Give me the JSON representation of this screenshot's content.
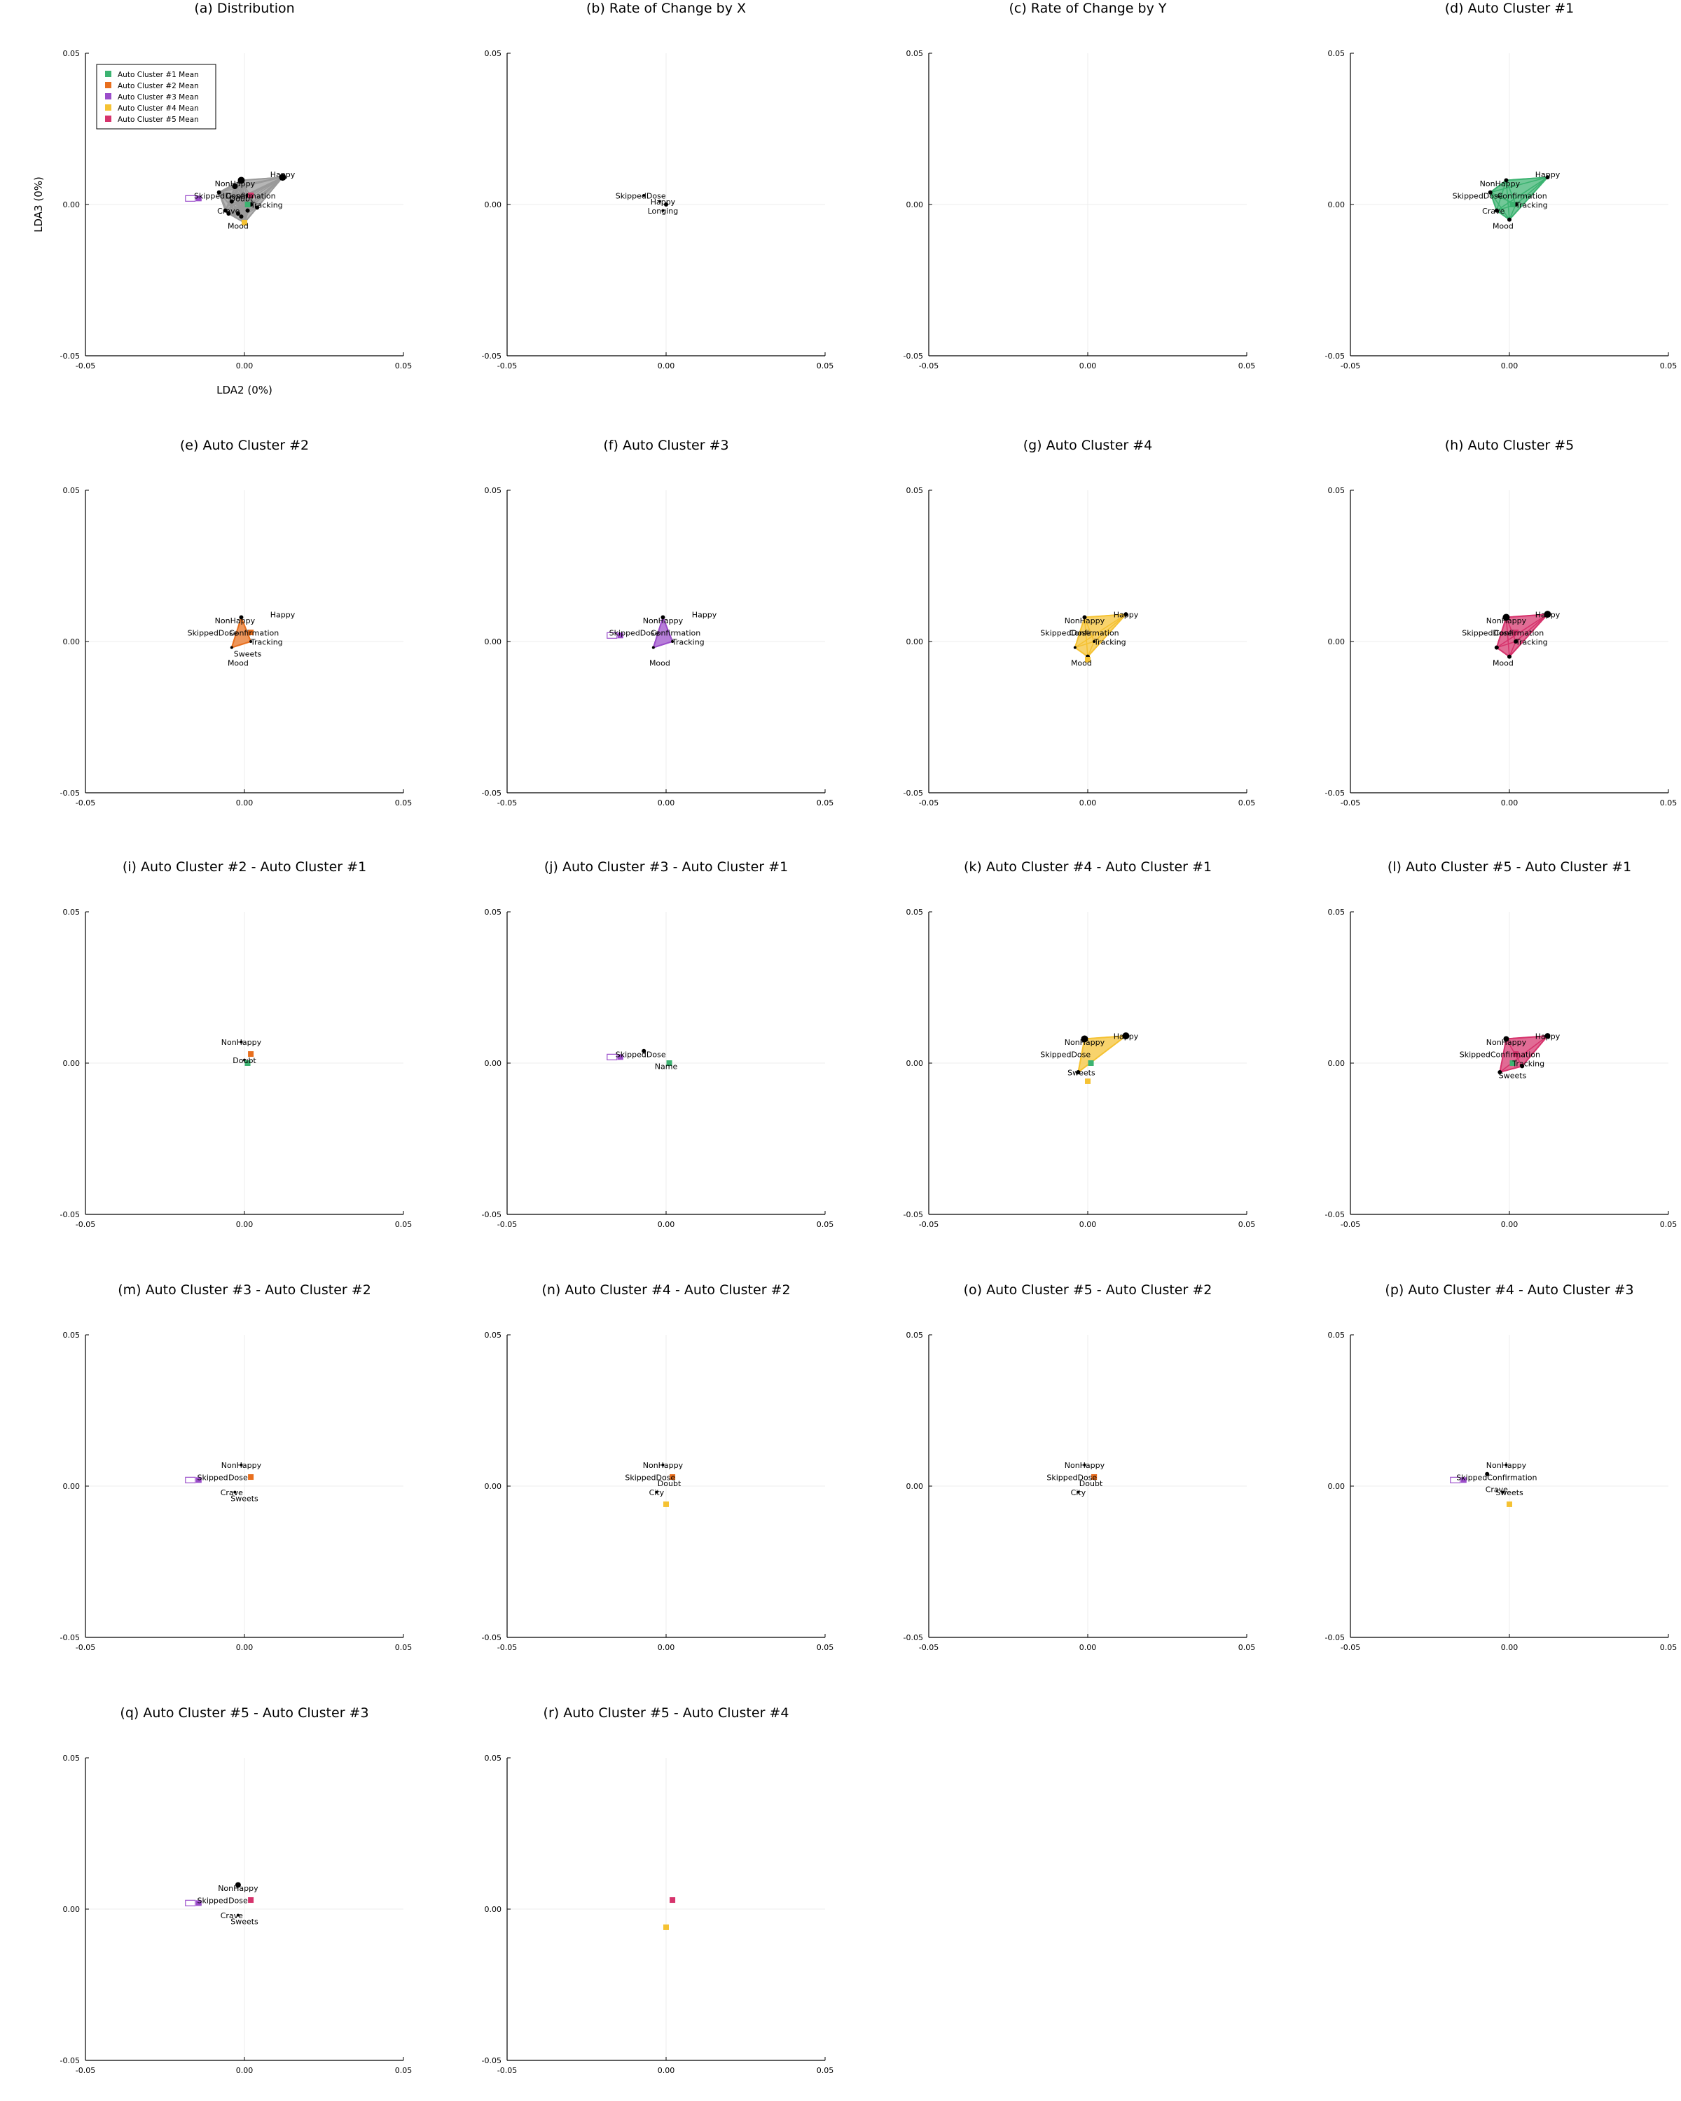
{
  "colors": {
    "cluster1": "#3cb371",
    "cluster2": "#e86f1e",
    "cluster3": "#9b4dca",
    "cluster4": "#f5c233",
    "cluster5": "#d6336c",
    "point": "#000000",
    "hull_all": "#9a9a9a",
    "grid": "#ececec",
    "axis": "#000000"
  },
  "legend": [
    {
      "label": "Auto Cluster #1 Mean",
      "color_key": "cluster1"
    },
    {
      "label": "Auto Cluster #2 Mean",
      "color_key": "cluster2"
    },
    {
      "label": "Auto Cluster #3 Mean",
      "color_key": "cluster3"
    },
    {
      "label": "Auto Cluster #4 Mean",
      "color_key": "cluster4"
    },
    {
      "label": "Auto Cluster #5 Mean",
      "color_key": "cluster5"
    }
  ],
  "chart_data": {
    "type": "scatter",
    "layout": "grid 5x4 of small-multiple scatter panels",
    "xlim": [
      -0.05,
      0.05
    ],
    "ylim": [
      -0.05,
      0.05
    ],
    "xticks": [
      "-0.05",
      "0.00",
      "0.05"
    ],
    "yticks": [
      "-0.05",
      "0.00",
      "0.05"
    ],
    "xlabel": "LDA2 (0%)",
    "ylabel": "LDA3 (0%)",
    "grid": true,
    "legend_position": "top-left",
    "means": {
      "cluster1": [
        0.001,
        0.0
      ],
      "cluster2": [
        0.002,
        0.003
      ],
      "cluster3": [
        -0.017,
        0.002
      ],
      "cluster4": [
        0.0,
        -0.006
      ],
      "cluster5": [
        0.002,
        0.003
      ]
    },
    "panels": [
      {
        "title": "(a) Distribution",
        "hull": "hull_all",
        "legend": true,
        "axis_labels": true,
        "means": [
          "cluster1",
          "cluster2",
          "cluster3",
          "cluster4",
          "cluster5"
        ],
        "open_means": [
          "cluster3"
        ],
        "points": [
          [
            -0.001,
            0.008,
            5
          ],
          [
            0.012,
            0.009,
            5
          ],
          [
            -0.003,
            0.006,
            4
          ],
          [
            -0.008,
            0.004,
            3
          ],
          [
            0.001,
            0.003,
            3
          ],
          [
            -0.004,
            0.001,
            3
          ],
          [
            0.002,
            0.0,
            3
          ],
          [
            0.004,
            -0.001,
            3
          ],
          [
            -0.006,
            -0.002,
            3
          ],
          [
            -0.002,
            -0.003,
            3
          ],
          [
            -0.005,
            -0.003,
            3
          ],
          [
            0.001,
            -0.002,
            3
          ],
          [
            -0.001,
            -0.004,
            3
          ],
          [
            0.0,
            -0.006,
            3
          ]
        ],
        "labels": [
          {
            "text": "Happy",
            "x": 0.012,
            "y": 0.009
          },
          {
            "text": "NonHappy",
            "x": -0.003,
            "y": 0.006
          },
          {
            "text": "Skipped",
            "x": -0.011,
            "y": 0.002
          },
          {
            "text": "Dose",
            "x": -0.003,
            "y": 0.002
          },
          {
            "text": "Confirmation",
            "x": 0.002,
            "y": 0.002
          },
          {
            "text": "Doubt",
            "x": -0.001,
            "y": 0.001
          },
          {
            "text": "Tracking",
            "x": 0.007,
            "y": -0.001
          },
          {
            "text": "Crave",
            "x": -0.005,
            "y": -0.003
          },
          {
            "text": "Mood",
            "x": -0.002,
            "y": -0.008
          }
        ]
      },
      {
        "title": "(b) Rate of Change by X",
        "hull": null,
        "points": [
          [
            -0.007,
            0.003,
            2
          ],
          [
            0.0,
            0.0,
            3
          ],
          [
            -0.002,
            0.001,
            2
          ],
          [
            -0.001,
            -0.002,
            2
          ]
        ],
        "labels": [
          {
            "text": "SkippedDose",
            "x": -0.008,
            "y": 0.002
          },
          {
            "text": "Happy",
            "x": -0.001,
            "y": 0.0
          },
          {
            "text": "Longing",
            "x": -0.001,
            "y": -0.003
          }
        ]
      },
      {
        "title": "(c) Rate of Change by Y",
        "hull": null,
        "points": [],
        "labels": []
      },
      {
        "title": "(d) Auto Cluster #1",
        "hull": "cluster1",
        "means": [
          "cluster1"
        ],
        "points": [
          [
            -0.001,
            0.008,
            3
          ],
          [
            0.012,
            0.009,
            3
          ],
          [
            -0.006,
            0.004,
            3
          ],
          [
            0.002,
            0.0,
            3
          ],
          [
            -0.004,
            -0.002,
            3
          ],
          [
            0.0,
            -0.005,
            3
          ]
        ],
        "labels": [
          {
            "text": "Happy",
            "x": 0.012,
            "y": 0.009
          },
          {
            "text": "NonHappy",
            "x": -0.003,
            "y": 0.006
          },
          {
            "text": "SkippedDose",
            "x": -0.01,
            "y": 0.002
          },
          {
            "text": "Confirmation",
            "x": 0.004,
            "y": 0.002
          },
          {
            "text": "Tracking",
            "x": 0.007,
            "y": -0.001
          },
          {
            "text": "Crave",
            "x": -0.005,
            "y": -0.003
          },
          {
            "text": "Mood",
            "x": -0.002,
            "y": -0.008
          }
        ]
      },
      {
        "title": "(e) Auto Cluster #2",
        "hull": "cluster2",
        "means": [
          "cluster2"
        ],
        "points": [
          [
            -0.001,
            0.008,
            3
          ],
          [
            0.002,
            0.0,
            2
          ],
          [
            -0.004,
            -0.002,
            2
          ]
        ],
        "labels": [
          {
            "text": "Happy",
            "x": 0.012,
            "y": 0.008
          },
          {
            "text": "NonHappy",
            "x": -0.003,
            "y": 0.006
          },
          {
            "text": "SkippedDose",
            "x": -0.01,
            "y": 0.002
          },
          {
            "text": "Confirmation",
            "x": 0.003,
            "y": 0.002
          },
          {
            "text": "Tracking",
            "x": 0.007,
            "y": -0.001
          },
          {
            "text": "Sweets",
            "x": 0.001,
            "y": -0.005
          },
          {
            "text": "Mood",
            "x": -0.002,
            "y": -0.008
          }
        ]
      },
      {
        "title": "(f) Auto Cluster #3",
        "hull": "cluster3",
        "means": [
          "cluster3"
        ],
        "open_means": [
          "cluster3"
        ],
        "points": [
          [
            -0.001,
            0.008,
            3
          ],
          [
            0.002,
            0.0,
            2
          ],
          [
            -0.004,
            -0.002,
            2
          ]
        ],
        "labels": [
          {
            "text": "Happy",
            "x": 0.012,
            "y": 0.008
          },
          {
            "text": "NonHappy",
            "x": -0.001,
            "y": 0.006
          },
          {
            "text": "SkippedDose",
            "x": -0.01,
            "y": 0.002
          },
          {
            "text": "Confirmation",
            "x": 0.003,
            "y": 0.002
          },
          {
            "text": "Tracking",
            "x": 0.007,
            "y": -0.001
          },
          {
            "text": "Mood",
            "x": -0.002,
            "y": -0.008
          }
        ]
      },
      {
        "title": "(g) Auto Cluster #4",
        "hull": "cluster4",
        "means": [
          "cluster4"
        ],
        "points": [
          [
            -0.001,
            0.008,
            3
          ],
          [
            0.012,
            0.009,
            3
          ],
          [
            0.002,
            0.0,
            2
          ],
          [
            -0.004,
            -0.002,
            2
          ],
          [
            0.0,
            -0.005,
            3
          ]
        ],
        "labels": [
          {
            "text": "Happy",
            "x": 0.012,
            "y": 0.008
          },
          {
            "text": "NonHappy",
            "x": -0.001,
            "y": 0.006
          },
          {
            "text": "SkippedDose",
            "x": -0.007,
            "y": 0.002
          },
          {
            "text": "Confirmation",
            "x": 0.002,
            "y": 0.002
          },
          {
            "text": "Tracking",
            "x": 0.007,
            "y": -0.001
          },
          {
            "text": "Mood",
            "x": -0.002,
            "y": -0.008
          }
        ]
      },
      {
        "title": "(h) Auto Cluster #5",
        "hull": "cluster5",
        "means": [
          "cluster5"
        ],
        "points": [
          [
            -0.001,
            0.008,
            5
          ],
          [
            0.012,
            0.009,
            5
          ],
          [
            0.002,
            0.0,
            3
          ],
          [
            -0.004,
            -0.002,
            3
          ],
          [
            0.0,
            -0.005,
            3
          ]
        ],
        "labels": [
          {
            "text": "Happy",
            "x": 0.012,
            "y": 0.008
          },
          {
            "text": "NonHappy",
            "x": -0.001,
            "y": 0.006
          },
          {
            "text": "SkippedDose",
            "x": -0.007,
            "y": 0.002
          },
          {
            "text": "Confirmation",
            "x": 0.003,
            "y": 0.002
          },
          {
            "text": "Tracking",
            "x": 0.007,
            "y": -0.001
          },
          {
            "text": "Mood",
            "x": -0.002,
            "y": -0.008
          }
        ]
      },
      {
        "title": "(i) Auto Cluster #2 - Auto Cluster #1",
        "hull": null,
        "means": [
          "cluster2",
          "cluster1"
        ],
        "points": [
          [
            -0.001,
            0.007,
            2
          ],
          [
            0.0,
            0.001,
            2
          ]
        ],
        "labels": [
          {
            "text": "NonHappy",
            "x": -0.001,
            "y": 0.006
          },
          {
            "text": "Doubt",
            "x": 0.0,
            "y": 0.0
          }
        ]
      },
      {
        "title": "(j) Auto Cluster #3 - Auto Cluster #1",
        "hull": null,
        "means": [
          "cluster3",
          "cluster1"
        ],
        "open_means": [
          "cluster3"
        ],
        "points": [
          [
            -0.007,
            0.004,
            3
          ]
        ],
        "labels": [
          {
            "text": "SkippedDose",
            "x": -0.008,
            "y": 0.002
          },
          {
            "text": "Name",
            "x": 0.0,
            "y": -0.002
          }
        ]
      },
      {
        "title": "(k) Auto Cluster #4 - Auto Cluster #1",
        "hull": "cluster4",
        "means": [
          "cluster4",
          "cluster1"
        ],
        "points": [
          [
            -0.001,
            0.008,
            5
          ],
          [
            0.012,
            0.009,
            5
          ],
          [
            -0.003,
            -0.003,
            3
          ]
        ],
        "labels": [
          {
            "text": "Happy",
            "x": 0.012,
            "y": 0.008
          },
          {
            "text": "NonHappy",
            "x": -0.001,
            "y": 0.006
          },
          {
            "text": "SkippedDose",
            "x": -0.007,
            "y": 0.002
          },
          {
            "text": "Sweets",
            "x": -0.002,
            "y": -0.004
          }
        ]
      },
      {
        "title": "(l) Auto Cluster #5 - Auto Cluster #1",
        "hull": "cluster5",
        "means": [
          "cluster5",
          "cluster1"
        ],
        "points": [
          [
            -0.001,
            0.008,
            4
          ],
          [
            0.012,
            0.009,
            4
          ],
          [
            0.004,
            -0.001,
            3
          ],
          [
            -0.003,
            -0.003,
            3
          ]
        ],
        "labels": [
          {
            "text": "Happy",
            "x": 0.012,
            "y": 0.008
          },
          {
            "text": "NonHappy",
            "x": -0.001,
            "y": 0.006
          },
          {
            "text": "SkippedConfirmation",
            "x": -0.003,
            "y": 0.002
          },
          {
            "text": "Tracking",
            "x": 0.006,
            "y": -0.001
          },
          {
            "text": "Sweets",
            "x": 0.001,
            "y": -0.005
          }
        ]
      },
      {
        "title": "(m) Auto Cluster #3 - Auto Cluster #2",
        "hull": null,
        "means": [
          "cluster3",
          "cluster2"
        ],
        "open_means": [
          "cluster3"
        ],
        "points": [
          [
            -0.001,
            0.007,
            2
          ],
          [
            -0.003,
            -0.002,
            2
          ]
        ],
        "labels": [
          {
            "text": "NonHappy",
            "x": -0.001,
            "y": 0.006
          },
          {
            "text": "Skipped",
            "x": -0.01,
            "y": 0.002
          },
          {
            "text": "Dose",
            "x": -0.002,
            "y": 0.002
          },
          {
            "text": "Crave",
            "x": -0.004,
            "y": -0.003
          },
          {
            "text": "Sweets",
            "x": 0.0,
            "y": -0.005
          }
        ]
      },
      {
        "title": "(n) Auto Cluster #4 - Auto Cluster #2",
        "hull": null,
        "means": [
          "cluster4",
          "cluster2"
        ],
        "points": [
          [
            -0.001,
            0.007,
            2
          ],
          [
            -0.003,
            -0.002,
            2
          ]
        ],
        "labels": [
          {
            "text": "NonHappy",
            "x": -0.001,
            "y": 0.006
          },
          {
            "text": "SkippedDose",
            "x": -0.005,
            "y": 0.002
          },
          {
            "text": "Doubt",
            "x": 0.001,
            "y": 0.0
          },
          {
            "text": "City",
            "x": -0.003,
            "y": -0.003
          }
        ]
      },
      {
        "title": "(o) Auto Cluster #5 - Auto Cluster #2",
        "hull": null,
        "means": [
          "cluster5",
          "cluster2"
        ],
        "points": [
          [
            -0.001,
            0.007,
            2
          ],
          [
            -0.003,
            -0.002,
            2
          ]
        ],
        "labels": [
          {
            "text": "NonHappy",
            "x": -0.001,
            "y": 0.006
          },
          {
            "text": "SkippedDose",
            "x": -0.005,
            "y": 0.002
          },
          {
            "text": "Doubt",
            "x": 0.001,
            "y": 0.0
          },
          {
            "text": "City",
            "x": -0.003,
            "y": -0.003
          }
        ]
      },
      {
        "title": "(p) Auto Cluster #4 - Auto Cluster #3",
        "hull": null,
        "means": [
          "cluster4",
          "cluster3"
        ],
        "open_means": [
          "cluster3"
        ],
        "points": [
          [
            -0.007,
            0.004,
            3
          ],
          [
            -0.001,
            0.007,
            2
          ],
          [
            -0.002,
            -0.002,
            2
          ]
        ],
        "labels": [
          {
            "text": "NonHappy",
            "x": -0.001,
            "y": 0.006
          },
          {
            "text": "SkippedConfirmation",
            "x": -0.004,
            "y": 0.002
          },
          {
            "text": "Crave",
            "x": -0.004,
            "y": -0.002
          },
          {
            "text": "Sweets",
            "x": 0.0,
            "y": -0.003
          }
        ]
      },
      {
        "title": "(q) Auto Cluster #5 - Auto Cluster #3",
        "hull": null,
        "means": [
          "cluster5",
          "cluster3"
        ],
        "open_means": [
          "cluster3"
        ],
        "points": [
          [
            -0.002,
            0.008,
            4
          ],
          [
            -0.002,
            -0.002,
            2
          ]
        ],
        "labels": [
          {
            "text": "NonHappy",
            "x": -0.002,
            "y": 0.006
          },
          {
            "text": "Skipped",
            "x": -0.01,
            "y": 0.002
          },
          {
            "text": "Dose",
            "x": -0.002,
            "y": 0.002
          },
          {
            "text": "Crave",
            "x": -0.004,
            "y": -0.003
          },
          {
            "text": "Sweets",
            "x": 0.0,
            "y": -0.005
          }
        ]
      },
      {
        "title": "(r) Auto Cluster #5 - Auto Cluster #4",
        "hull": null,
        "means": [
          "cluster5",
          "cluster4"
        ],
        "points": [],
        "labels": []
      }
    ]
  }
}
